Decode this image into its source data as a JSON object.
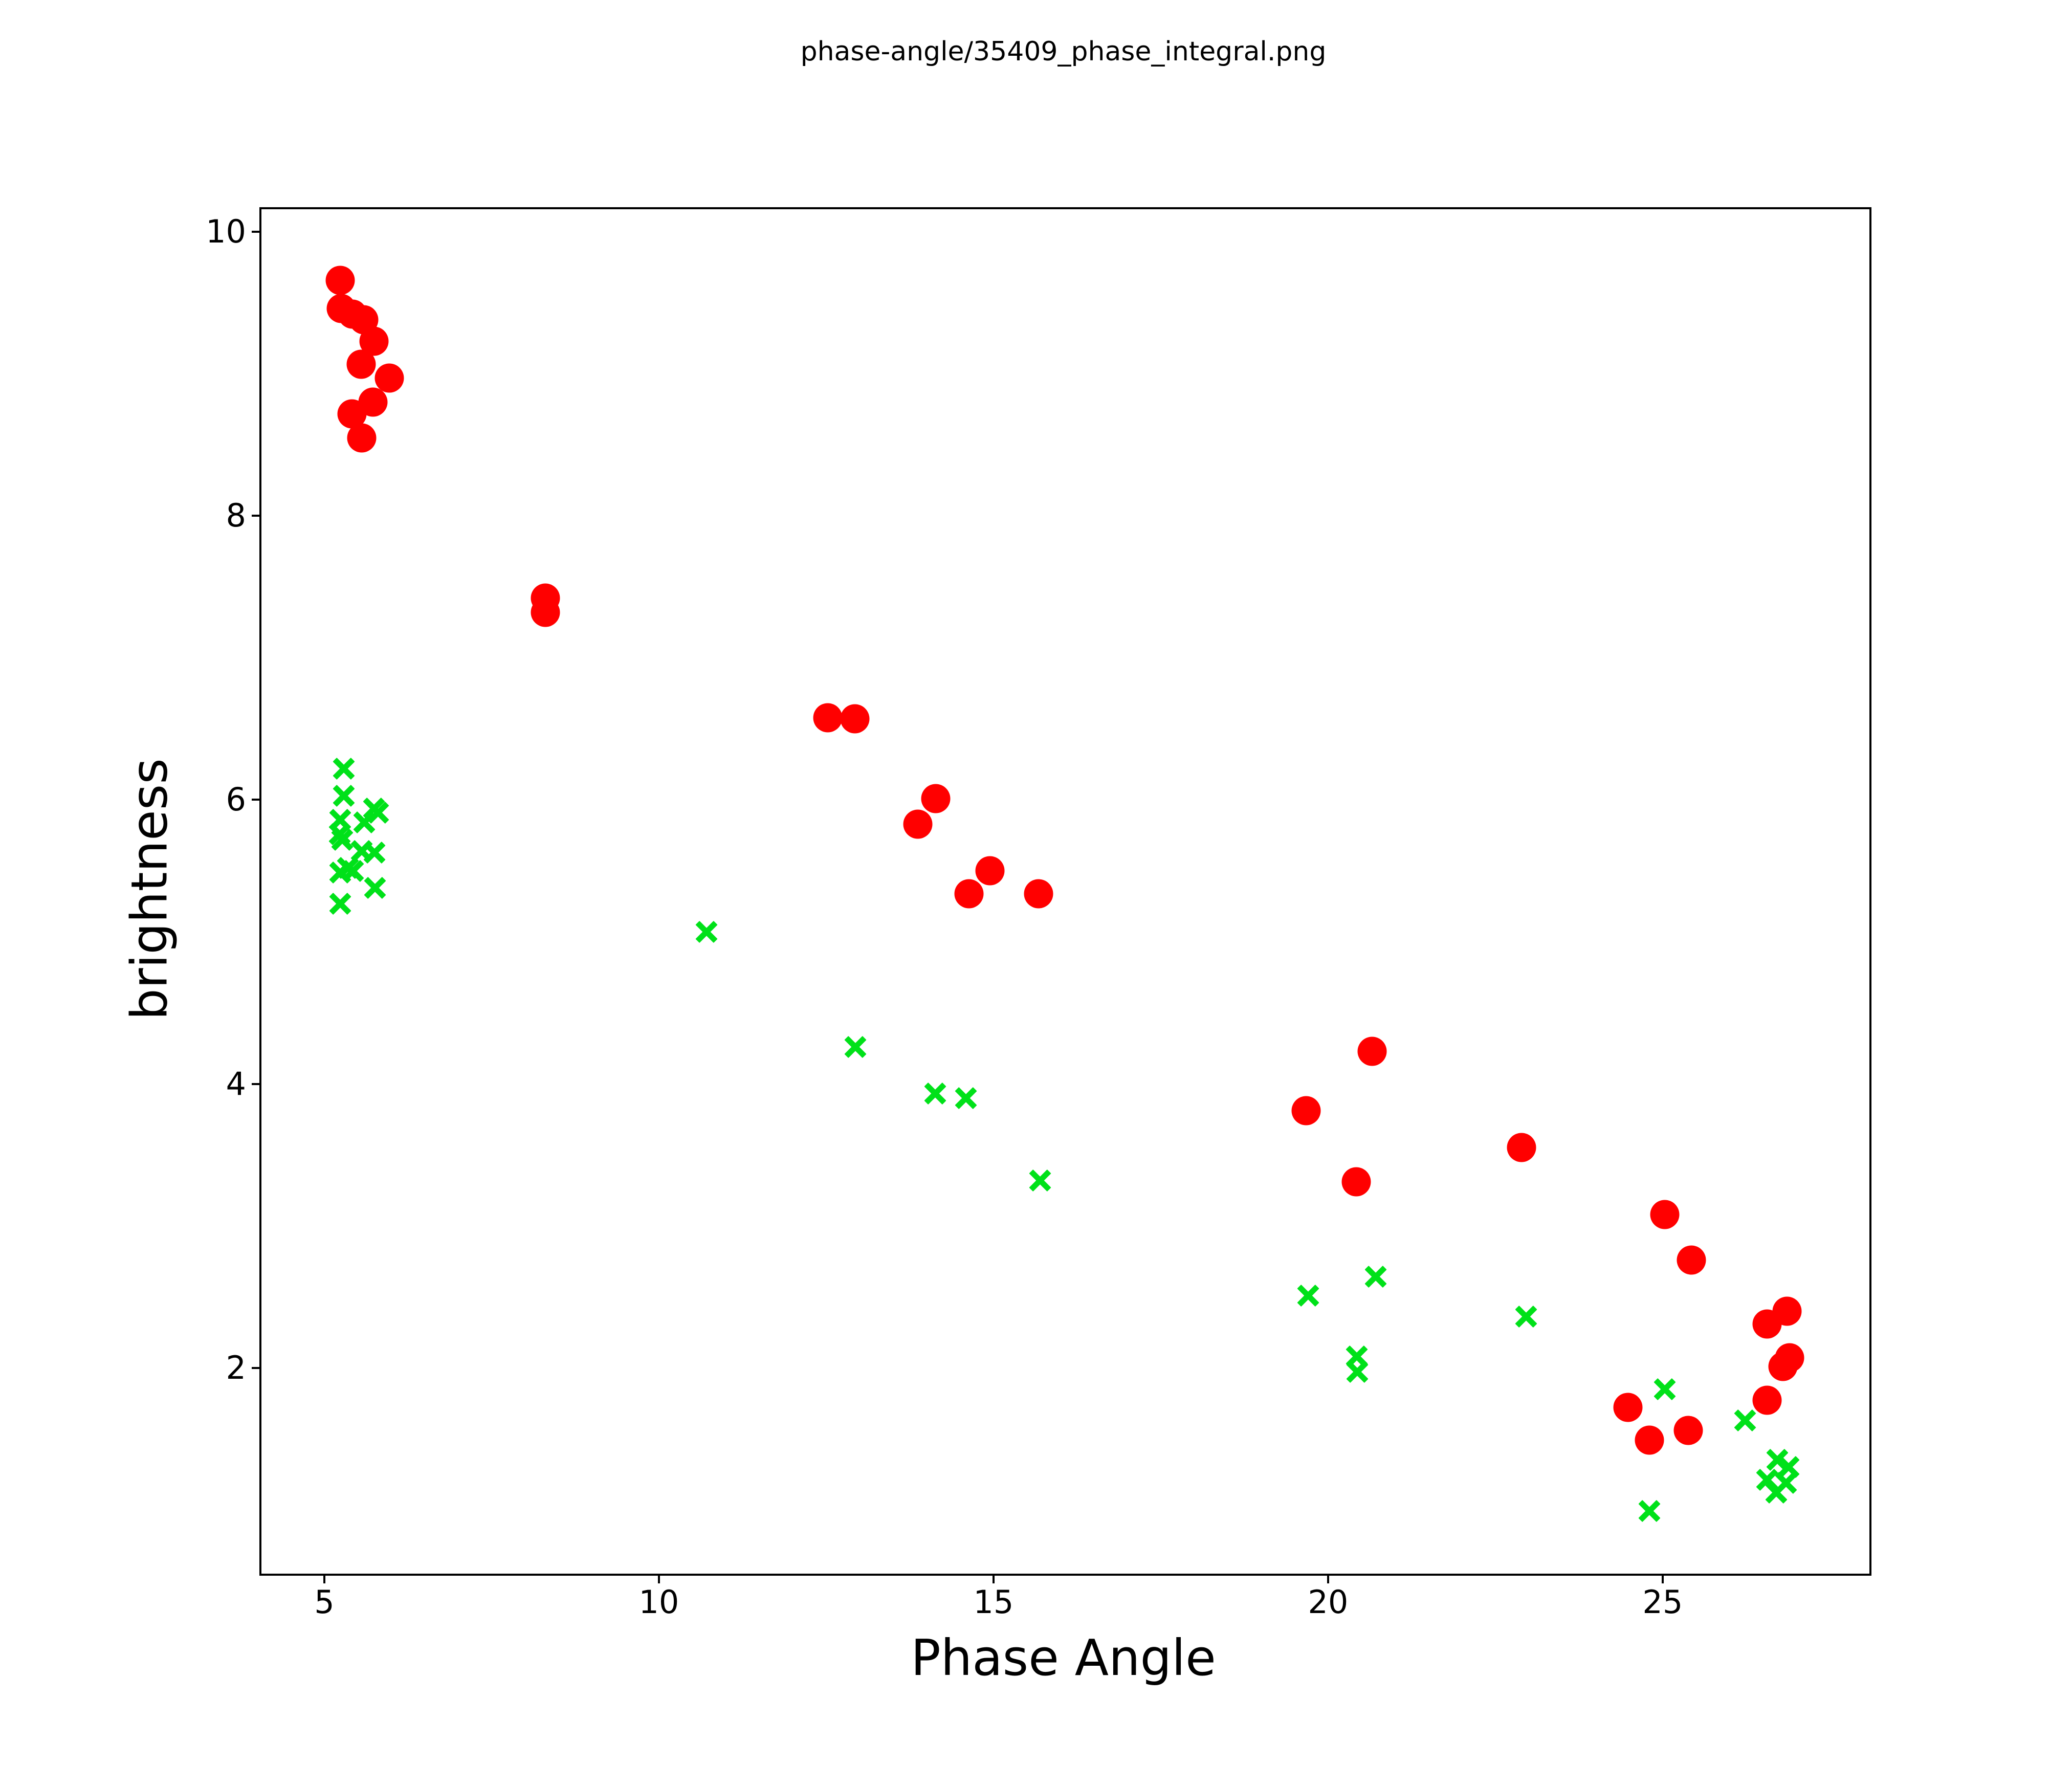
{
  "chart_data": {
    "type": "scatter",
    "title": "phase-angle/35409_phase_integral.png",
    "xlabel": "Phase Angle",
    "ylabel": "brightness",
    "xlim": [
      4.06,
      28.09
    ],
    "ylim": [
      0.55,
      10.16
    ],
    "xticks": [
      5,
      10,
      15,
      20,
      25
    ],
    "yticks": [
      2,
      4,
      6,
      8,
      10
    ],
    "grid": false,
    "legend": false,
    "background": "#ffffff",
    "axis_color": "#000000",
    "series": [
      {
        "name": "red-dots",
        "marker": "circle",
        "color": "#ff0000",
        "points": [
          [
            5.24,
            9.66
          ],
          [
            5.25,
            9.46
          ],
          [
            5.42,
            9.42
          ],
          [
            5.59,
            9.38
          ],
          [
            5.74,
            9.23
          ],
          [
            5.55,
            9.07
          ],
          [
            5.97,
            8.97
          ],
          [
            5.73,
            8.8
          ],
          [
            5.41,
            8.72
          ],
          [
            5.56,
            8.55
          ],
          [
            8.3,
            7.42
          ],
          [
            8.3,
            7.32
          ],
          [
            12.52,
            6.58
          ],
          [
            12.93,
            6.57
          ],
          [
            14.14,
            6.01
          ],
          [
            13.87,
            5.83
          ],
          [
            14.95,
            5.5
          ],
          [
            14.63,
            5.34
          ],
          [
            15.67,
            5.34
          ],
          [
            20.66,
            4.23
          ],
          [
            19.67,
            3.81
          ],
          [
            22.89,
            3.55
          ],
          [
            20.42,
            3.31
          ],
          [
            25.03,
            3.08
          ],
          [
            25.43,
            2.76
          ],
          [
            26.86,
            2.4
          ],
          [
            26.56,
            2.31
          ],
          [
            26.9,
            2.07
          ],
          [
            26.8,
            2.01
          ],
          [
            26.56,
            1.77
          ],
          [
            24.48,
            1.72
          ],
          [
            25.38,
            1.56
          ],
          [
            24.8,
            1.49
          ]
        ]
      },
      {
        "name": "green-crosses",
        "marker": "x",
        "color": "#00e119",
        "points": [
          [
            5.29,
            6.22
          ],
          [
            5.29,
            6.03
          ],
          [
            5.24,
            5.86
          ],
          [
            5.74,
            5.94
          ],
          [
            5.8,
            5.91
          ],
          [
            5.6,
            5.84
          ],
          [
            5.23,
            5.76
          ],
          [
            5.27,
            5.72
          ],
          [
            5.56,
            5.64
          ],
          [
            5.75,
            5.63
          ],
          [
            5.24,
            5.49
          ],
          [
            5.35,
            5.52
          ],
          [
            5.43,
            5.5
          ],
          [
            5.76,
            5.38
          ],
          [
            5.24,
            5.27
          ],
          [
            10.71,
            5.07
          ],
          [
            12.94,
            4.26
          ],
          [
            14.13,
            3.93
          ],
          [
            14.59,
            3.9
          ],
          [
            15.7,
            3.32
          ],
          [
            19.7,
            2.51
          ],
          [
            20.71,
            2.64
          ],
          [
            20.43,
            2.08
          ],
          [
            20.44,
            1.97
          ],
          [
            22.96,
            2.36
          ],
          [
            25.03,
            1.85
          ],
          [
            26.23,
            1.63
          ],
          [
            26.71,
            1.35
          ],
          [
            26.88,
            1.3
          ],
          [
            26.56,
            1.21
          ],
          [
            26.84,
            1.19
          ],
          [
            26.7,
            1.12
          ],
          [
            24.8,
            0.99
          ]
        ]
      }
    ]
  }
}
